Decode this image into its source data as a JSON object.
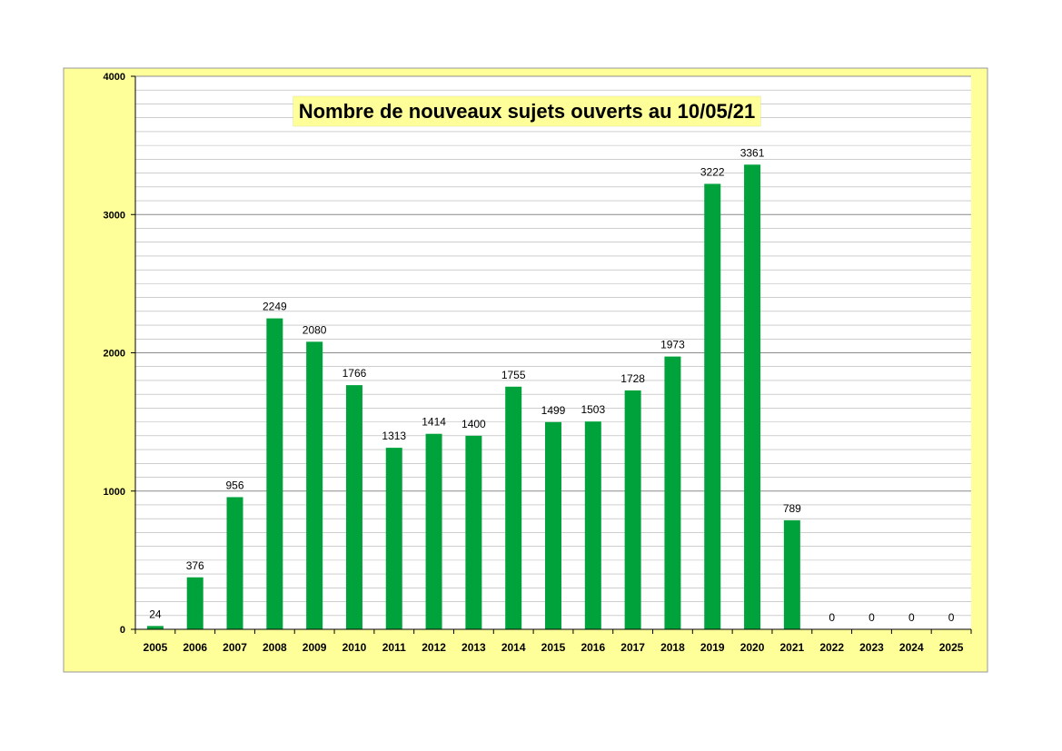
{
  "chart_data": {
    "type": "bar",
    "title": "Nombre de nouveaux sujets ouverts au 10/05/21",
    "xlabel": "",
    "ylabel": "",
    "ylim": [
      0,
      4000
    ],
    "yticks": [
      0,
      1000,
      2000,
      3000,
      4000
    ],
    "minor_grid_step": 100,
    "grid": true,
    "legend": "none",
    "categories": [
      "2005",
      "2006",
      "2007",
      "2008",
      "2009",
      "2010",
      "2011",
      "2012",
      "2013",
      "2014",
      "2015",
      "2016",
      "2017",
      "2018",
      "2019",
      "2020",
      "2021",
      "2022",
      "2023",
      "2024",
      "2025"
    ],
    "values": [
      24,
      376,
      956,
      2249,
      2080,
      1766,
      1313,
      1414,
      1400,
      1755,
      1499,
      1503,
      1728,
      1973,
      3222,
      3361,
      789,
      0,
      0,
      0,
      0
    ],
    "colors": {
      "bar": "#00a33b",
      "plot_background": "#ffffff",
      "chart_background": "#ffff99",
      "title_background": "#ffff99",
      "gridline": "#b0b0b0"
    }
  }
}
